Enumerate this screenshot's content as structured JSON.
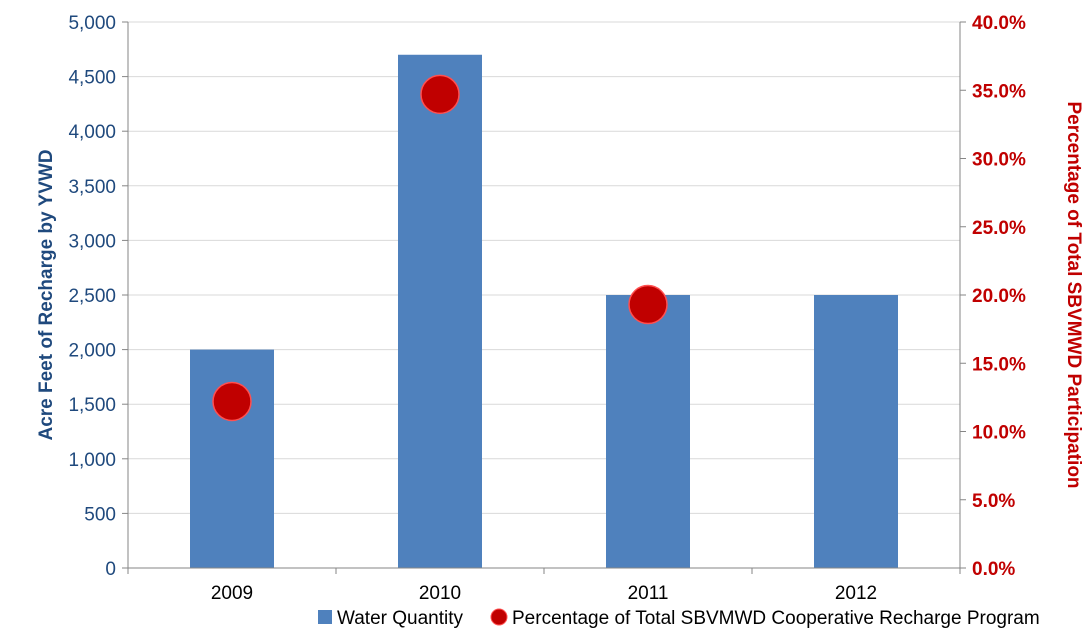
{
  "chart_data": {
    "type": "bar",
    "categories": [
      "2009",
      "2010",
      "2011",
      "2012"
    ],
    "series": [
      {
        "name": "Water Quantity",
        "type": "bar",
        "axis": "left",
        "color": "#4f81bd",
        "values": [
          2000,
          4700,
          2500,
          2500
        ]
      },
      {
        "name": "Percentage of Total SBVMWD Cooperative Recharge Program",
        "type": "scatter",
        "axis": "right",
        "color": "#c00000",
        "values": [
          0.122,
          0.347,
          0.193,
          null
        ]
      }
    ],
    "ylabel": "Acre Feet of Recharge by YVWD",
    "y2label": "Percentage of Total SBVMWD Participation",
    "ylim": [
      0,
      5000
    ],
    "y2lim": [
      0,
      0.4
    ],
    "yticks": [
      "0",
      "500",
      "1,000",
      "1,500",
      "2,000",
      "2,500",
      "3,000",
      "3,500",
      "4,000",
      "4,500",
      "5,000"
    ],
    "y2ticks": [
      "0.0%",
      "5.0%",
      "10.0%",
      "15.0%",
      "20.0%",
      "25.0%",
      "30.0%",
      "35.0%",
      "40.0%"
    ],
    "grid": true,
    "legend_position": "bottom",
    "colors": {
      "left_axis_text": "#1f497d",
      "right_axis_text": "#c00000",
      "gridline": "#d9d9d9",
      "axis_line": "#868686"
    }
  }
}
